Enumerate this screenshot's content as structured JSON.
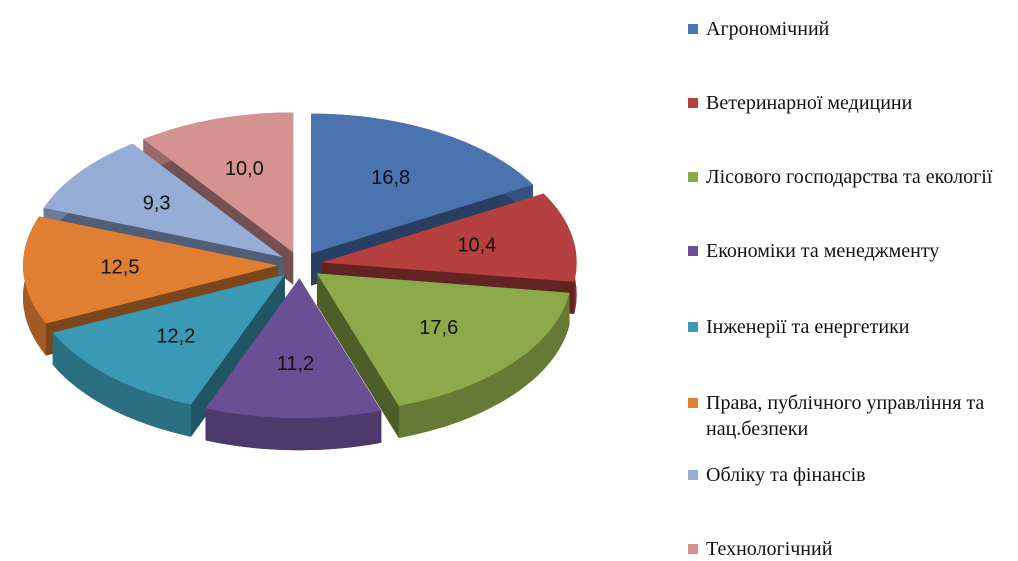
{
  "chart_data": {
    "type": "pie",
    "categories": [
      "Агрономічний",
      "Ветеринарної медицини",
      "Лісового господарства та екології",
      "Економіки та менеджменту",
      "Інженерії та енергетики",
      "Права, публічного управління та нац.безпеки",
      "Обліку та фінансів",
      "Технологічний"
    ],
    "values": [
      16.8,
      10.4,
      17.6,
      11.2,
      12.2,
      12.5,
      9.3,
      10.0
    ],
    "value_labels": [
      "16,8",
      "10,4",
      "17,6",
      "11,2",
      "12,2",
      "12,5",
      "9,3",
      "10,0"
    ],
    "colors": [
      "#4a73b0",
      "#b5403f",
      "#8daa4a",
      "#6b4f95",
      "#3a9ab5",
      "#e07f32",
      "#94acd6",
      "#d49291"
    ],
    "legend": "right"
  }
}
